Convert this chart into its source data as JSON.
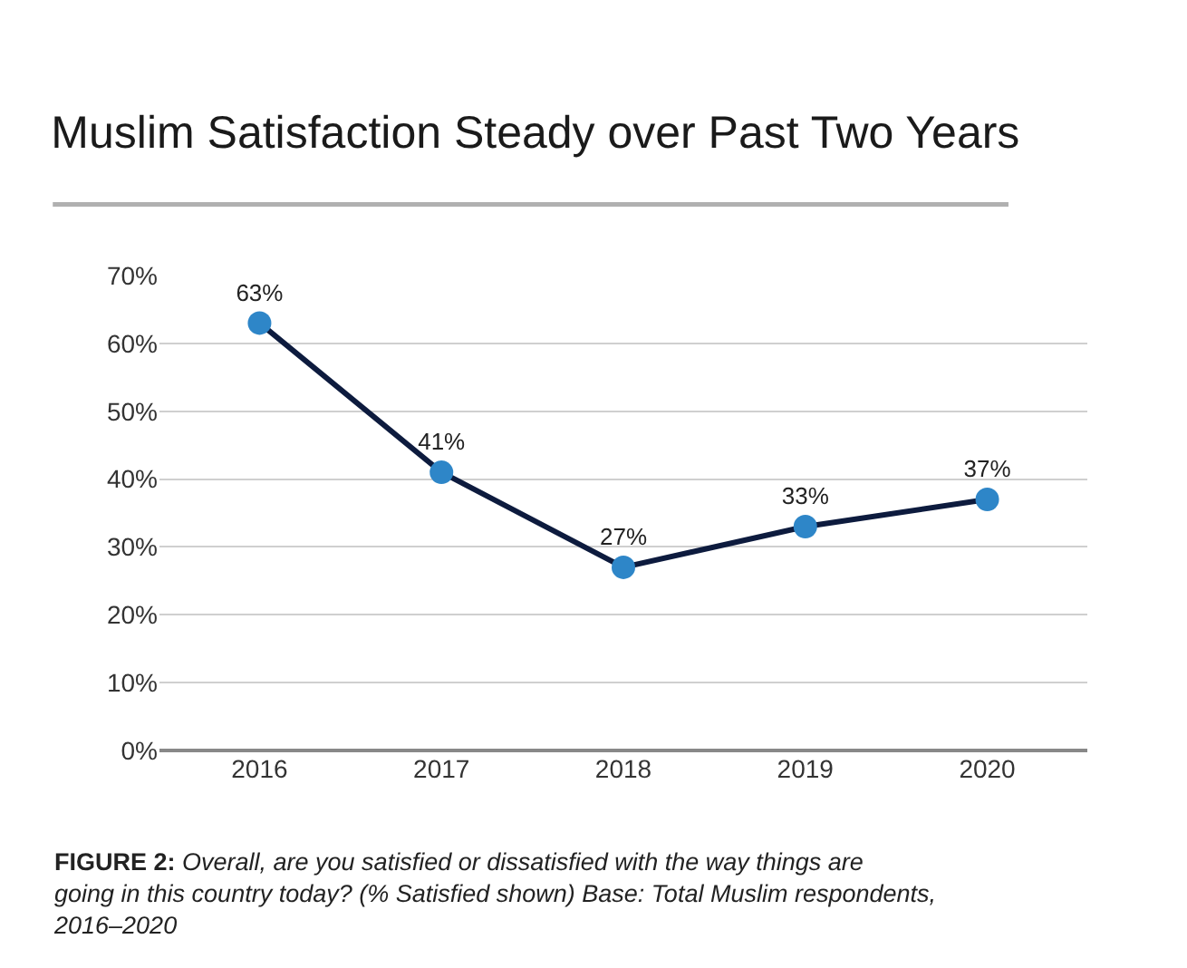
{
  "chart_data": {
    "type": "line",
    "title": "Muslim Satisfaction Steady over Past Two Years",
    "categories": [
      "2016",
      "2017",
      "2018",
      "2019",
      "2020"
    ],
    "series": [
      {
        "color": "#0d1b3e",
        "values": [
          63,
          41,
          27,
          33,
          37
        ],
        "value_labels": [
          "63%",
          "41%",
          "27%",
          "33%",
          "37%"
        ]
      }
    ],
    "ylim": [
      0,
      70
    ],
    "yticks": [
      {
        "value": 0,
        "label": "0%"
      },
      {
        "value": 10,
        "label": "10%"
      },
      {
        "value": 20,
        "label": "20%"
      },
      {
        "value": 30,
        "label": "30%"
      },
      {
        "value": 40,
        "label": "40%"
      },
      {
        "value": 50,
        "label": "50%"
      },
      {
        "value": 60,
        "label": "60%"
      },
      {
        "value": 70,
        "label": "70%"
      }
    ],
    "grid": "y",
    "legend": false,
    "marker": "circle",
    "line_style": "solid",
    "annotations": [
      "FIGURE 2: Overall, are you satisfied or dissatisfied with the way things are going in this country today? (% Satisfied shown) Base: Total Muslim respondents, 2016–2020"
    ]
  }
}
